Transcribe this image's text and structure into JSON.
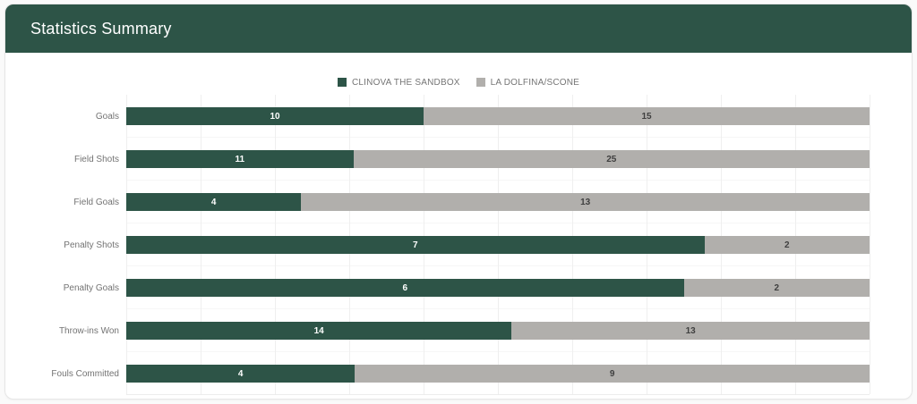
{
  "header": {
    "title": "Statistics Summary",
    "background_color": "#2d5447"
  },
  "legend": [
    {
      "label": "CLINOVA THE SANDBOX",
      "color": "#2d5447"
    },
    {
      "label": "LA DOLFINA/SCONE",
      "color": "#b1afac"
    }
  ],
  "chart_data": {
    "type": "bar",
    "orientation": "horizontal",
    "stacking": "percent",
    "title": "Statistics Summary",
    "categories": [
      "Goals",
      "Field Shots",
      "Field Goals",
      "Penalty Shots",
      "Penalty Goals",
      "Throw-ins Won",
      "Fouls Committed"
    ],
    "series": [
      {
        "name": "CLINOVA THE SANDBOX",
        "color": "#2d5447",
        "label_color": "#ffffff",
        "values": [
          10,
          11,
          4,
          7,
          6,
          14,
          4
        ]
      },
      {
        "name": "LA DOLFINA/SCONE",
        "color": "#b1afac",
        "label_color": "#3f3f3f",
        "values": [
          15,
          25,
          13,
          2,
          2,
          13,
          9
        ]
      }
    ],
    "grid": true,
    "gridline_count": 11,
    "legend_position": "top-center",
    "colors": {
      "grid_line": "#efefef",
      "category_label": "#737373"
    }
  }
}
